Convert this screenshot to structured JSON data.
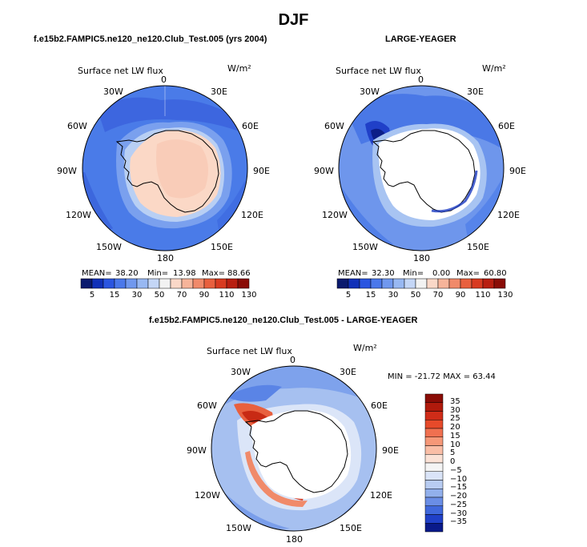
{
  "figure": {
    "title": "DJF",
    "panels": [
      {
        "title": "f.e15b2.FAMPIC5.ne120_ne120.Club_Test.005 (yrs 2004)",
        "variable": "Surface net LW flux",
        "units": "W/m²",
        "stats": {
          "mean_label": "MEAN=",
          "mean": "38.20",
          "min_label": "Min=",
          "min": "13.98",
          "max_label": "Max=",
          "max": "88.66"
        }
      },
      {
        "title": "LARGE-YEAGER",
        "variable": "Surface net LW flux",
        "units": "W/m²",
        "stats": {
          "mean_label": "MEAN=",
          "mean": "32.30",
          "min_label": "Min=",
          "min": "0.00",
          "max_label": "Max=",
          "max": "60.80"
        }
      },
      {
        "title": "f.e15b2.FAMPIC5.ne120_ne120.Club_Test.005 - LARGE-YEAGER",
        "variable": "Surface net LW flux",
        "units": "W/m²",
        "range_text": "MIN = -21.72  MAX =  63.44"
      }
    ],
    "longitude_labels": [
      "0",
      "30E",
      "60E",
      "90E",
      "120E",
      "150E",
      "180",
      "150W",
      "120W",
      "90W",
      "60W",
      "30W"
    ],
    "colorbar_horizontal": {
      "tick_labels": [
        "5",
        "15",
        "30",
        "50",
        "70",
        "90",
        "110",
        "130"
      ],
      "colors": [
        "#0a1a6e",
        "#1030b8",
        "#2a55e0",
        "#4a78ea",
        "#7098ee",
        "#98b8f2",
        "#c4d6f6",
        "#f2f2f2",
        "#fad8c8",
        "#f6b49a",
        "#f08a6a",
        "#e8603e",
        "#d83a20",
        "#b81e10",
        "#8a0c06"
      ]
    },
    "colorbar_vertical": {
      "tick_labels": [
        "35",
        "30",
        "25",
        "20",
        "15",
        "10",
        "5",
        "0",
        "-5",
        "-10",
        "-15",
        "-20",
        "-25",
        "-30",
        "-35"
      ],
      "colors": [
        "#8a0c06",
        "#b01a0c",
        "#d02c18",
        "#e64a2a",
        "#f07050",
        "#f69878",
        "#fabea6",
        "#fbe2d6",
        "#f4f4f4",
        "#dae4f8",
        "#b8ccf2",
        "#92b0ec",
        "#6a8ee6",
        "#4068dc",
        "#2040c8",
        "#0a1a8a"
      ]
    }
  }
}
